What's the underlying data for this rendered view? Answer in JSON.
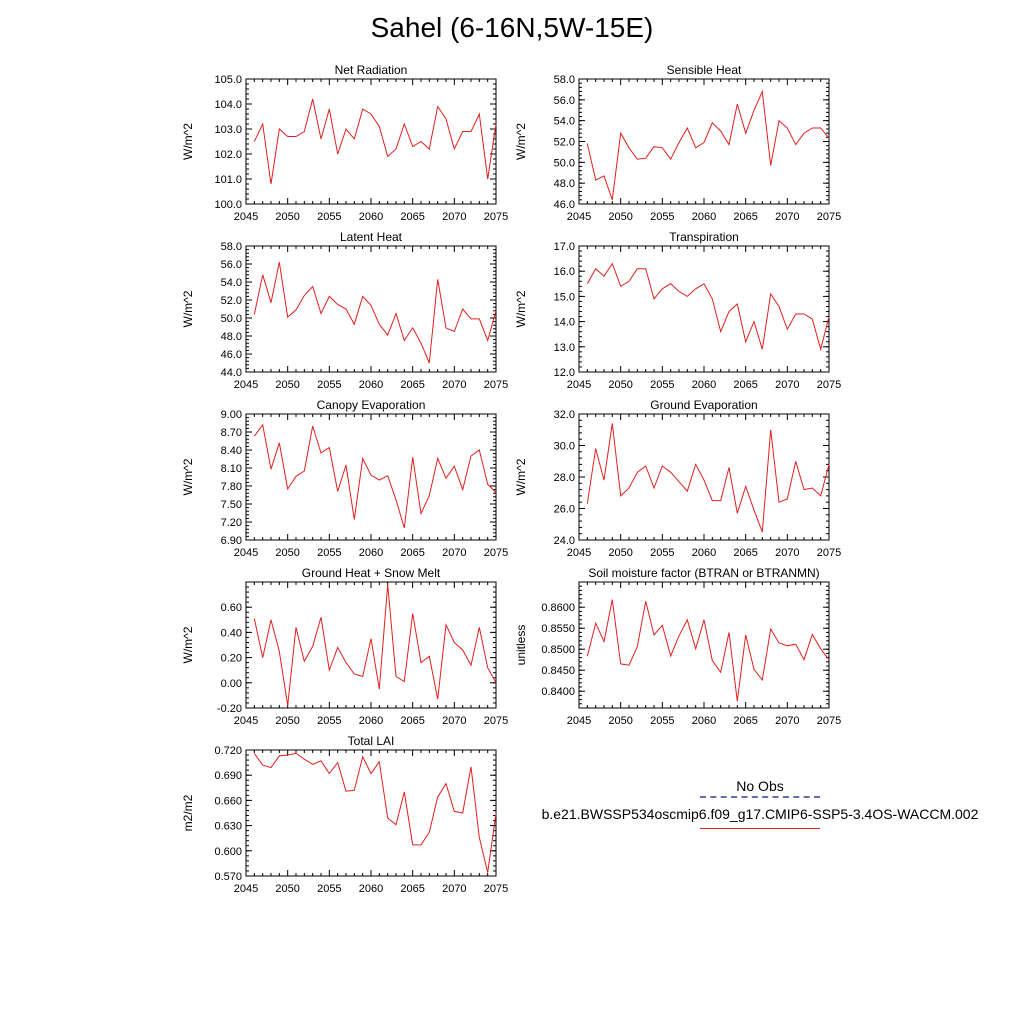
{
  "page": {
    "title": "Sahel (6-16N,5W-15E)"
  },
  "legend": {
    "obs_label": "No Obs",
    "obs_color": "#6b6bb3",
    "case_label": "b.e21.BWSSP534oscmip6.f09_g17.CMIP6-SSP5-3.4OS-WACCM.002",
    "case_color": "#e0201e"
  },
  "chart_data": [
    {
      "type": "line",
      "title": "Net Radiation",
      "ylabel": "W/m^2",
      "xlim": [
        2045,
        2075
      ],
      "ylim": [
        100.0,
        105.0
      ],
      "yticks": [
        100.0,
        101.0,
        102.0,
        103.0,
        104.0,
        105.0
      ],
      "ytick_labels": [
        "100.0",
        "101.0",
        "102.0",
        "103.0",
        "104.0",
        "105.0"
      ],
      "xticks": [
        2045,
        2050,
        2055,
        2060,
        2065,
        2070,
        2075
      ],
      "series": [
        {
          "color": "#e0201e",
          "x": [
            2046,
            2047,
            2048,
            2049,
            2050,
            2051,
            2052,
            2053,
            2054,
            2055,
            2056,
            2057,
            2058,
            2059,
            2060,
            2061,
            2062,
            2063,
            2064,
            2065,
            2066,
            2067,
            2068,
            2069,
            2070,
            2071,
            2072,
            2073,
            2074,
            2075
          ],
          "values": [
            102.5,
            103.2,
            100.8,
            103.0,
            102.7,
            102.7,
            102.9,
            104.2,
            102.6,
            103.8,
            102.0,
            103.0,
            102.6,
            103.8,
            103.6,
            103.1,
            101.9,
            102.2,
            103.2,
            102.3,
            102.5,
            102.2,
            103.9,
            103.4,
            102.2,
            102.9,
            102.9,
            103.6,
            101.0,
            103.2
          ]
        }
      ]
    },
    {
      "type": "line",
      "title": "Sensible Heat",
      "ylabel": "W/m^2",
      "xlim": [
        2045,
        2075
      ],
      "ylim": [
        46.0,
        58.0
      ],
      "yticks": [
        46.0,
        48.0,
        50.0,
        52.0,
        54.0,
        56.0,
        58.0
      ],
      "ytick_labels": [
        "46.0",
        "48.0",
        "50.0",
        "52.0",
        "54.0",
        "56.0",
        "58.0"
      ],
      "xticks": [
        2045,
        2050,
        2055,
        2060,
        2065,
        2070,
        2075
      ],
      "series": [
        {
          "color": "#e0201e",
          "x": [
            2046,
            2047,
            2048,
            2049,
            2050,
            2051,
            2052,
            2053,
            2054,
            2055,
            2056,
            2057,
            2058,
            2059,
            2060,
            2061,
            2062,
            2063,
            2064,
            2065,
            2066,
            2067,
            2068,
            2069,
            2070,
            2071,
            2072,
            2073,
            2074,
            2075
          ],
          "values": [
            51.8,
            48.3,
            48.7,
            46.4,
            52.8,
            51.4,
            50.3,
            50.4,
            51.5,
            51.4,
            50.3,
            51.9,
            53.3,
            51.4,
            51.9,
            53.8,
            53.0,
            51.7,
            55.6,
            52.8,
            55.0,
            56.8,
            49.7,
            54.0,
            53.3,
            51.7,
            52.8,
            53.3,
            53.3,
            52.3
          ]
        }
      ]
    },
    {
      "type": "line",
      "title": "Latent Heat",
      "ylabel": "W/m^2",
      "xlim": [
        2045,
        2075
      ],
      "ylim": [
        44.0,
        58.0
      ],
      "yticks": [
        44.0,
        46.0,
        48.0,
        50.0,
        52.0,
        54.0,
        56.0,
        58.0
      ],
      "ytick_labels": [
        "44.0",
        "46.0",
        "48.0",
        "50.0",
        "52.0",
        "54.0",
        "56.0",
        "58.0"
      ],
      "xticks": [
        2045,
        2050,
        2055,
        2060,
        2065,
        2070,
        2075
      ],
      "series": [
        {
          "color": "#e0201e",
          "x": [
            2046,
            2047,
            2048,
            2049,
            2050,
            2051,
            2052,
            2053,
            2054,
            2055,
            2056,
            2057,
            2058,
            2059,
            2060,
            2061,
            2062,
            2063,
            2064,
            2065,
            2066,
            2067,
            2068,
            2069,
            2070,
            2071,
            2072,
            2073,
            2074,
            2075
          ],
          "values": [
            50.4,
            54.8,
            51.7,
            56.2,
            50.1,
            50.9,
            52.5,
            53.5,
            50.5,
            52.4,
            51.5,
            51.0,
            49.3,
            52.4,
            51.4,
            49.3,
            48.1,
            50.5,
            47.5,
            48.9,
            47.2,
            45.0,
            54.3,
            48.9,
            48.5,
            51.0,
            49.9,
            49.9,
            47.5,
            50.8
          ]
        }
      ]
    },
    {
      "type": "line",
      "title": "Transpiration",
      "ylabel": "W/m^2",
      "xlim": [
        2045,
        2075
      ],
      "ylim": [
        12.0,
        17.0
      ],
      "yticks": [
        12.0,
        13.0,
        14.0,
        15.0,
        16.0,
        17.0
      ],
      "ytick_labels": [
        "12.0",
        "13.0",
        "14.0",
        "15.0",
        "16.0",
        "17.0"
      ],
      "xticks": [
        2045,
        2050,
        2055,
        2060,
        2065,
        2070,
        2075
      ],
      "series": [
        {
          "color": "#e0201e",
          "x": [
            2046,
            2047,
            2048,
            2049,
            2050,
            2051,
            2052,
            2053,
            2054,
            2055,
            2056,
            2057,
            2058,
            2059,
            2060,
            2061,
            2062,
            2063,
            2064,
            2065,
            2066,
            2067,
            2068,
            2069,
            2070,
            2071,
            2072,
            2073,
            2074,
            2075
          ],
          "values": [
            15.5,
            16.1,
            15.8,
            16.3,
            15.4,
            15.6,
            16.1,
            16.1,
            14.9,
            15.3,
            15.5,
            15.2,
            15.0,
            15.3,
            15.5,
            14.9,
            13.6,
            14.4,
            14.7,
            13.2,
            14.0,
            12.9,
            15.1,
            14.6,
            13.7,
            14.3,
            14.3,
            14.1,
            12.9,
            14.2
          ]
        }
      ]
    },
    {
      "type": "line",
      "title": "Canopy Evaporation",
      "ylabel": "W/m^2",
      "xlim": [
        2045,
        2075
      ],
      "ylim": [
        6.9,
        9.0
      ],
      "yticks": [
        6.9,
        7.2,
        7.5,
        7.8,
        8.1,
        8.4,
        8.7,
        9.0
      ],
      "ytick_labels": [
        "6.90",
        "7.20",
        "7.50",
        "7.80",
        "8.10",
        "8.40",
        "8.70",
        "9.00"
      ],
      "xticks": [
        2045,
        2050,
        2055,
        2060,
        2065,
        2070,
        2075
      ],
      "series": [
        {
          "color": "#e0201e",
          "x": [
            2046,
            2047,
            2048,
            2049,
            2050,
            2051,
            2052,
            2053,
            2054,
            2055,
            2056,
            2057,
            2058,
            2059,
            2060,
            2061,
            2062,
            2063,
            2064,
            2065,
            2066,
            2067,
            2068,
            2069,
            2070,
            2071,
            2072,
            2073,
            2074,
            2075
          ],
          "values": [
            8.63,
            8.82,
            8.08,
            8.52,
            7.75,
            7.96,
            8.05,
            8.8,
            8.35,
            8.44,
            7.71,
            8.15,
            7.24,
            8.26,
            7.98,
            7.9,
            7.97,
            7.57,
            7.1,
            8.28,
            7.34,
            7.64,
            8.26,
            7.93,
            8.13,
            7.74,
            8.3,
            8.4,
            7.83,
            7.69
          ]
        }
      ]
    },
    {
      "type": "line",
      "title": "Ground Evaporation",
      "ylabel": "W/m^2",
      "xlim": [
        2045,
        2075
      ],
      "ylim": [
        24.0,
        32.0
      ],
      "yticks": [
        24.0,
        26.0,
        28.0,
        30.0,
        32.0
      ],
      "ytick_labels": [
        "24.0",
        "26.0",
        "28.0",
        "30.0",
        "32.0"
      ],
      "xticks": [
        2045,
        2050,
        2055,
        2060,
        2065,
        2070,
        2075
      ],
      "series": [
        {
          "color": "#e0201e",
          "x": [
            2046,
            2047,
            2048,
            2049,
            2050,
            2051,
            2052,
            2053,
            2054,
            2055,
            2056,
            2057,
            2058,
            2059,
            2060,
            2061,
            2062,
            2063,
            2064,
            2065,
            2066,
            2067,
            2068,
            2069,
            2070,
            2071,
            2072,
            2073,
            2074,
            2075
          ],
          "values": [
            26.3,
            29.8,
            27.8,
            31.4,
            26.8,
            27.3,
            28.3,
            28.7,
            27.3,
            28.7,
            28.3,
            27.7,
            27.1,
            28.8,
            27.8,
            26.5,
            26.5,
            28.6,
            25.7,
            27.4,
            25.9,
            24.5,
            31.0,
            26.4,
            26.6,
            29.0,
            27.2,
            27.3,
            26.8,
            28.8
          ]
        }
      ]
    },
    {
      "type": "line",
      "title": "Ground Heat + Snow Melt",
      "ylabel": "W/m^2",
      "xlim": [
        2045,
        2075
      ],
      "ylim": [
        -0.2,
        0.8
      ],
      "yticks": [
        -0.2,
        0.0,
        0.2,
        0.4,
        0.6
      ],
      "ytick_labels": [
        "-0.20",
        "0.00",
        "0.20",
        "0.40",
        "0.60"
      ],
      "xticks": [
        2045,
        2050,
        2055,
        2060,
        2065,
        2070,
        2075
      ],
      "series": [
        {
          "color": "#e0201e",
          "x": [
            2046,
            2047,
            2048,
            2049,
            2050,
            2051,
            2052,
            2053,
            2054,
            2055,
            2056,
            2057,
            2058,
            2059,
            2060,
            2061,
            2062,
            2063,
            2064,
            2065,
            2066,
            2067,
            2068,
            2069,
            2070,
            2071,
            2072,
            2073,
            2074,
            2075
          ],
          "values": [
            0.51,
            0.2,
            0.5,
            0.25,
            -0.18,
            0.44,
            0.17,
            0.29,
            0.52,
            0.1,
            0.28,
            0.16,
            0.07,
            0.05,
            0.35,
            -0.05,
            0.78,
            0.05,
            0.01,
            0.55,
            0.16,
            0.21,
            -0.13,
            0.46,
            0.32,
            0.26,
            0.14,
            0.44,
            0.12,
            0.0
          ]
        }
      ]
    },
    {
      "type": "line",
      "title": "Soil moisture factor (BTRAN or BTRANMN)",
      "ylabel": "unitless",
      "xlim": [
        2045,
        2075
      ],
      "ylim": [
        0.836,
        0.866
      ],
      "yticks": [
        0.84,
        0.845,
        0.85,
        0.855,
        0.86
      ],
      "ytick_labels": [
        "0.8400",
        "0.8450",
        "0.8500",
        "0.8550",
        "0.8600"
      ],
      "xticks": [
        2045,
        2050,
        2055,
        2060,
        2065,
        2070,
        2075
      ],
      "series": [
        {
          "color": "#e0201e",
          "x": [
            2046,
            2047,
            2048,
            2049,
            2050,
            2051,
            2052,
            2053,
            2054,
            2055,
            2056,
            2057,
            2058,
            2059,
            2060,
            2061,
            2062,
            2063,
            2064,
            2065,
            2066,
            2067,
            2068,
            2069,
            2070,
            2071,
            2072,
            2073,
            2074,
            2075
          ],
          "values": [
            0.8483,
            0.8562,
            0.8518,
            0.8618,
            0.8465,
            0.8462,
            0.8506,
            0.8614,
            0.8534,
            0.8557,
            0.8484,
            0.8532,
            0.857,
            0.8501,
            0.857,
            0.8473,
            0.8445,
            0.854,
            0.8376,
            0.8534,
            0.8452,
            0.8427,
            0.8548,
            0.8515,
            0.8508,
            0.8512,
            0.8475,
            0.8535,
            0.8501,
            0.8475
          ]
        }
      ]
    },
    {
      "type": "line",
      "title": "Total LAI",
      "ylabel": "m2/m2",
      "xlim": [
        2045,
        2075
      ],
      "ylim": [
        0.57,
        0.72
      ],
      "yticks": [
        0.57,
        0.6,
        0.63,
        0.66,
        0.69,
        0.72
      ],
      "ytick_labels": [
        "0.570",
        "0.600",
        "0.630",
        "0.660",
        "0.690",
        "0.720"
      ],
      "xticks": [
        2045,
        2050,
        2055,
        2060,
        2065,
        2070,
        2075
      ],
      "series": [
        {
          "color": "#e0201e",
          "x": [
            2046,
            2047,
            2048,
            2049,
            2050,
            2051,
            2052,
            2053,
            2054,
            2055,
            2056,
            2057,
            2058,
            2059,
            2060,
            2061,
            2062,
            2063,
            2064,
            2065,
            2066,
            2067,
            2068,
            2069,
            2070,
            2071,
            2072,
            2073,
            2074,
            2075
          ],
          "values": [
            0.716,
            0.702,
            0.699,
            0.713,
            0.714,
            0.716,
            0.709,
            0.703,
            0.707,
            0.692,
            0.705,
            0.671,
            0.672,
            0.712,
            0.692,
            0.706,
            0.639,
            0.631,
            0.67,
            0.607,
            0.607,
            0.622,
            0.664,
            0.68,
            0.647,
            0.645,
            0.7,
            0.616,
            0.574,
            0.645
          ]
        }
      ]
    }
  ]
}
